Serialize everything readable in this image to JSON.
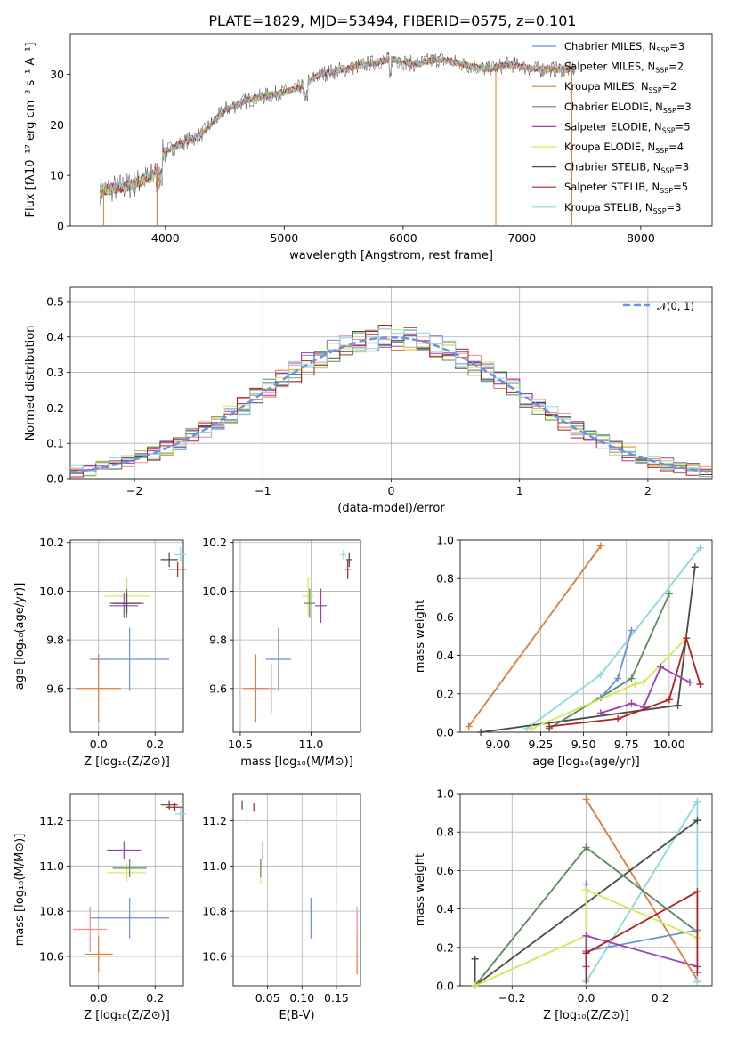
{
  "page": {
    "title": "PLATE=1829, MJD=53494, FIBERID=0575, z=0.101"
  },
  "colors": {
    "chabrier_miles": "#6a8fd8",
    "salpeter_miles": "#f28e8e",
    "kroupa_miles": "#e07b39",
    "chabrier_elodie": "#5a8a5e",
    "salpeter_elodie": "#9a3fb3",
    "kroupa_elodie": "#d4e857",
    "chabrier_stelib": "#4a4a4a",
    "salpeter_stelib": "#b22222",
    "kroupa_stelib": "#8ad8e0",
    "normal_curve": "#6495ed",
    "grid": "#b0b0b0"
  },
  "chart_data": [
    {
      "id": "spectrum",
      "type": "line",
      "title": "PLATE=1829, MJD=53494, FIBERID=0575, z=0.101",
      "xlabel": "wavelength [Angstrom, rest frame]",
      "ylabel": "Flux [fλ10⁻¹⁷ erg cm⁻² s⁻¹ A⁻¹]",
      "xlim": [
        3200,
        8600
      ],
      "ylim": [
        0,
        38
      ],
      "xticks": [
        "4000",
        "5000",
        "6000",
        "7000",
        "8000"
      ],
      "yticks": [
        "0",
        "10",
        "20",
        "30"
      ],
      "grid": false,
      "legend_position": "top-right",
      "legend": [
        {
          "label": "Chabrier MILES, N",
          "sub": "SSP",
          "tail": "=3",
          "color_key": "chabrier_miles"
        },
        {
          "label": "Salpeter MILES, N",
          "sub": "SSP",
          "tail": "=2",
          "color_key": "salpeter_miles"
        },
        {
          "label": "Kroupa MILES, N",
          "sub": "SSP",
          "tail": "=2",
          "color_key": "kroupa_miles"
        },
        {
          "label": "Chabrier ELODIE, N",
          "sub": "SSP",
          "tail": "=3",
          "color_key": "chabrier_elodie"
        },
        {
          "label": "Salpeter ELODIE, N",
          "sub": "SSP",
          "tail": "=5",
          "color_key": "salpeter_elodie"
        },
        {
          "label": "Kroupa ELODIE, N",
          "sub": "SSP",
          "tail": "=4",
          "color_key": "kroupa_elodie"
        },
        {
          "label": "Chabrier STELIB, N",
          "sub": "SSP",
          "tail": "=3",
          "color_key": "chabrier_stelib"
        },
        {
          "label": "Salpeter STELIB, N",
          "sub": "SSP",
          "tail": "=5",
          "color_key": "salpeter_stelib"
        },
        {
          "label": "Kroupa STELIB, N",
          "sub": "SSP",
          "tail": "=3",
          "color_key": "kroupa_stelib"
        }
      ],
      "continuum": [
        [
          3450,
          7
        ],
        [
          3700,
          8
        ],
        [
          3800,
          9
        ],
        [
          3900,
          10
        ],
        [
          3950,
          14
        ],
        [
          4100,
          16
        ],
        [
          4300,
          18
        ],
        [
          4500,
          23
        ],
        [
          4700,
          25
        ],
        [
          4900,
          26
        ],
        [
          5100,
          27
        ],
        [
          5300,
          30
        ],
        [
          5500,
          31
        ],
        [
          5700,
          32
        ],
        [
          5900,
          33
        ],
        [
          6100,
          32
        ],
        [
          6300,
          33
        ],
        [
          6500,
          32
        ],
        [
          6700,
          31
        ],
        [
          6900,
          32
        ],
        [
          7100,
          31
        ],
        [
          7300,
          31
        ],
        [
          7450,
          31
        ]
      ],
      "drops": [
        {
          "x": 3480,
          "y": 0,
          "color_key": "kroupa_miles"
        },
        {
          "x": 3930,
          "y": 0,
          "color_key": "kroupa_miles"
        },
        {
          "x": 6780,
          "y": 0,
          "color_key": "kroupa_miles"
        },
        {
          "x": 7420,
          "y": 0,
          "color_key": "kroupa_miles"
        }
      ]
    },
    {
      "id": "residuals",
      "type": "step",
      "xlabel": "(data-model)/error",
      "ylabel": "Normed distribution",
      "xlim": [
        -2.5,
        2.5
      ],
      "ylim": [
        0,
        0.54
      ],
      "xticks": [
        "−2",
        "−1",
        "0",
        "1",
        "2"
      ],
      "yticks": [
        "0.0",
        "0.1",
        "0.2",
        "0.3",
        "0.4",
        "0.5"
      ],
      "grid": true,
      "legend": [
        {
          "label": "𝒩(0, 1)",
          "color_key": "normal_curve",
          "style": "dashed"
        }
      ],
      "legend_position": "top-right",
      "bin_width": 0.1
    },
    {
      "id": "age_vs_Z",
      "type": "scatter",
      "xlabel": "Z [log₁₀(Z/Z⊙)]",
      "ylabel": "age  [log₁₀(age/yr)]",
      "xlim": [
        -0.1,
        0.3
      ],
      "ylim": [
        9.42,
        10.21
      ],
      "xticks": [
        "0.0",
        "0.2"
      ],
      "yticks": [
        "9.6",
        "9.8",
        "10.0",
        "10.2"
      ],
      "grid": true,
      "points": [
        {
          "color_key": "chabrier_miles",
          "x": 0.11,
          "y": 9.72,
          "xerr": 0.14,
          "yerr": 0.13
        },
        {
          "color_key": "kroupa_miles",
          "x": 0.0,
          "y": 9.6,
          "xerr": 0.08,
          "yerr": 0.14
        },
        {
          "color_key": "kroupa_elodie",
          "x": 0.1,
          "y": 9.98,
          "xerr": 0.08,
          "yerr": 0.08
        },
        {
          "color_key": "chabrier_elodie",
          "x": 0.1,
          "y": 9.95,
          "xerr": 0.06,
          "yerr": 0.06
        },
        {
          "color_key": "salpeter_elodie",
          "x": 0.09,
          "y": 9.94,
          "xerr": 0.05,
          "yerr": 0.05
        },
        {
          "color_key": "chabrier_stelib",
          "x": 0.1,
          "y": 9.95,
          "xerr": 0.05,
          "yerr": 0.04
        },
        {
          "color_key": "chabrier_stelib",
          "x": 0.25,
          "y": 10.13,
          "xerr": 0.03,
          "yerr": 0.03
        },
        {
          "color_key": "salpeter_stelib",
          "x": 0.28,
          "y": 10.09,
          "xerr": 0.03,
          "yerr": 0.03
        },
        {
          "color_key": "kroupa_stelib",
          "x": 0.29,
          "y": 10.15,
          "xerr": 0.02,
          "yerr": 0.03
        }
      ]
    },
    {
      "id": "age_vs_mass",
      "type": "scatter",
      "xlabel": "mass [log₁₀(M/M⊙)]",
      "xlim": [
        10.45,
        11.35
      ],
      "ylim": [
        9.42,
        10.21
      ],
      "xticks": [
        "10.5",
        "11.0"
      ],
      "yticks": [
        "9.6",
        "9.8",
        "10.0",
        "10.2"
      ],
      "grid": true,
      "points": [
        {
          "color_key": "chabrier_miles",
          "x": 10.77,
          "y": 9.72,
          "xerr": 0.09,
          "yerr": 0.13
        },
        {
          "color_key": "kroupa_miles",
          "x": 10.61,
          "y": 9.6,
          "xerr": 0.09,
          "yerr": 0.14
        },
        {
          "color_key": "salpeter_miles",
          "x": 10.72,
          "y": 9.6,
          "xerr": 0.03,
          "yerr": 0.1
        },
        {
          "color_key": "kroupa_elodie",
          "x": 10.98,
          "y": 9.98,
          "xerr": 0.04,
          "yerr": 0.08
        },
        {
          "color_key": "chabrier_elodie",
          "x": 10.99,
          "y": 9.95,
          "xerr": 0.04,
          "yerr": 0.06
        },
        {
          "color_key": "salpeter_elodie",
          "x": 11.07,
          "y": 9.94,
          "xerr": 0.04,
          "yerr": 0.07
        },
        {
          "color_key": "chabrier_stelib",
          "x": 11.27,
          "y": 10.13,
          "xerr": 0.02,
          "yerr": 0.03
        },
        {
          "color_key": "salpeter_stelib",
          "x": 11.26,
          "y": 10.09,
          "xerr": 0.02,
          "yerr": 0.04
        },
        {
          "color_key": "kroupa_stelib",
          "x": 11.23,
          "y": 10.15,
          "xerr": 0.02,
          "yerr": 0.02
        }
      ]
    },
    {
      "id": "weight_vs_age",
      "type": "line",
      "xlabel": "age  [log₁₀(age/yr)]",
      "ylabel": "mass weight",
      "xlim": [
        8.78,
        10.25
      ],
      "ylim": [
        0,
        1.0
      ],
      "xticks": [
        "9.00",
        "9.25",
        "9.50",
        "9.75",
        "10.00"
      ],
      "yticks": [
        "0.0",
        "0.2",
        "0.4",
        "0.6",
        "0.8",
        "1.0"
      ],
      "grid": true,
      "series": [
        {
          "color_key": "kroupa_miles",
          "x": [
            8.83,
            9.6
          ],
          "y": [
            0.03,
            0.97
          ]
        },
        {
          "color_key": "kroupa_stelib",
          "x": [
            9.17,
            9.6,
            10.18
          ],
          "y": [
            0.02,
            0.3,
            0.96
          ]
        },
        {
          "color_key": "chabrier_stelib",
          "x": [
            8.9,
            10.05,
            10.15
          ],
          "y": [
            0.0,
            0.14,
            0.86
          ]
        },
        {
          "color_key": "chabrier_elodie",
          "x": [
            9.3,
            9.78,
            10.0
          ],
          "y": [
            0.02,
            0.28,
            0.72
          ]
        },
        {
          "color_key": "chabrier_miles",
          "x": [
            9.6,
            9.7,
            9.78
          ],
          "y": [
            0.18,
            0.28,
            0.53
          ]
        },
        {
          "color_key": "kroupa_elodie",
          "x": [
            9.2,
            9.8,
            9.85,
            10.1
          ],
          "y": [
            0.02,
            0.25,
            0.26,
            0.49
          ]
        },
        {
          "color_key": "salpeter_elodie",
          "x": [
            9.6,
            9.78,
            9.85,
            9.95,
            10.12
          ],
          "y": [
            0.1,
            0.15,
            0.13,
            0.34,
            0.26
          ]
        },
        {
          "color_key": "salpeter_stelib",
          "x": [
            9.3,
            9.7,
            10.0,
            10.1,
            10.18
          ],
          "y": [
            0.03,
            0.07,
            0.17,
            0.49,
            0.25
          ]
        }
      ]
    },
    {
      "id": "mass_vs_Z",
      "type": "scatter",
      "xlabel": "Z [log₁₀(Z/Z⊙)]",
      "ylabel": "mass [log₁₀(M/M⊙)]",
      "xlim": [
        -0.1,
        0.3
      ],
      "ylim": [
        10.47,
        11.32
      ],
      "xticks": [
        "0.0",
        "0.2"
      ],
      "yticks": [
        "10.6",
        "10.8",
        "11.0",
        "11.2"
      ],
      "grid": true,
      "points": [
        {
          "color_key": "chabrier_miles",
          "x": 0.11,
          "y": 10.77,
          "xerr": 0.14,
          "yerr": 0.09
        },
        {
          "color_key": "kroupa_miles",
          "x": 0.0,
          "y": 10.61,
          "xerr": 0.05,
          "yerr": 0.08
        },
        {
          "color_key": "salpeter_miles",
          "x": -0.03,
          "y": 10.72,
          "xerr": 0.06,
          "yerr": 0.1
        },
        {
          "color_key": "kroupa_elodie",
          "x": 0.1,
          "y": 10.97,
          "xerr": 0.07,
          "yerr": 0.04
        },
        {
          "color_key": "chabrier_elodie",
          "x": 0.11,
          "y": 10.99,
          "xerr": 0.06,
          "yerr": 0.04
        },
        {
          "color_key": "salpeter_elodie",
          "x": 0.09,
          "y": 11.07,
          "xerr": 0.06,
          "yerr": 0.04
        },
        {
          "color_key": "chabrier_stelib",
          "x": 0.25,
          "y": 11.27,
          "xerr": 0.03,
          "yerr": 0.02
        },
        {
          "color_key": "salpeter_stelib",
          "x": 0.27,
          "y": 11.26,
          "xerr": 0.03,
          "yerr": 0.02
        },
        {
          "color_key": "kroupa_stelib",
          "x": 0.29,
          "y": 11.23,
          "xerr": 0.02,
          "yerr": 0.03
        }
      ]
    },
    {
      "id": "mass_vs_ebv",
      "type": "scatter",
      "xlabel": "E(B-V)",
      "xlim": [
        0.0,
        0.185
      ],
      "ylim": [
        10.47,
        11.32
      ],
      "xticks": [
        "0.05",
        "0.10",
        "0.15"
      ],
      "yticks": [
        "10.6",
        "10.8",
        "11.0",
        "11.2"
      ],
      "grid": true,
      "points": [
        {
          "color_key": "chabrier_miles",
          "x": 0.113,
          "y": 10.77,
          "xerr": 0.0,
          "yerr": 0.09
        },
        {
          "color_key": "kroupa_miles",
          "x": 0.18,
          "y": 10.61,
          "xerr": 0.0,
          "yerr": 0.09
        },
        {
          "color_key": "salpeter_miles",
          "x": 0.18,
          "y": 10.72,
          "xerr": 0.0,
          "yerr": 0.1
        },
        {
          "color_key": "kroupa_elodie",
          "x": 0.04,
          "y": 10.97,
          "xerr": 0.0,
          "yerr": 0.05
        },
        {
          "color_key": "chabrier_elodie",
          "x": 0.04,
          "y": 10.99,
          "xerr": 0.0,
          "yerr": 0.04
        },
        {
          "color_key": "salpeter_elodie",
          "x": 0.043,
          "y": 11.07,
          "xerr": 0.0,
          "yerr": 0.04
        },
        {
          "color_key": "chabrier_stelib",
          "x": 0.013,
          "y": 11.27,
          "xerr": 0.0,
          "yerr": 0.02
        },
        {
          "color_key": "salpeter_stelib",
          "x": 0.03,
          "y": 11.26,
          "xerr": 0.0,
          "yerr": 0.02
        },
        {
          "color_key": "kroupa_stelib",
          "x": 0.02,
          "y": 11.21,
          "xerr": 0.0,
          "yerr": 0.03
        }
      ]
    },
    {
      "id": "weight_vs_Z",
      "type": "line",
      "xlabel": "Z [log₁₀(Z/Z⊙)]",
      "ylabel": "mass weight",
      "xlim": [
        -0.34,
        0.34
      ],
      "ylim": [
        0,
        1.0
      ],
      "xticks": [
        "−0.2",
        "0.0",
        "0.2"
      ],
      "yticks": [
        "0.0",
        "0.2",
        "0.4",
        "0.6",
        "0.8",
        "1.0"
      ],
      "grid": true,
      "series": [
        {
          "color_key": "kroupa_miles",
          "x": [
            0.0,
            0.3
          ],
          "y": [
            0.97,
            0.03
          ]
        },
        {
          "color_key": "kroupa_stelib",
          "x": [
            0.0,
            0.3,
            0.3
          ],
          "y": [
            0.02,
            0.96,
            0.02
          ]
        },
        {
          "color_key": "chabrier_stelib",
          "x": [
            -0.3,
            -0.3,
            0.3
          ],
          "y": [
            0.14,
            0.0,
            0.86
          ]
        },
        {
          "color_key": "chabrier_elodie",
          "x": [
            -0.3,
            0.0,
            0.3
          ],
          "y": [
            0.0,
            0.72,
            0.28
          ]
        },
        {
          "color_key": "chabrier_miles",
          "x": [
            0.0,
            0.0,
            0.3
          ],
          "y": [
            0.53,
            0.18,
            0.29
          ]
        },
        {
          "color_key": "kroupa_elodie",
          "x": [
            -0.3,
            0.0,
            0.0,
            0.3
          ],
          "y": [
            0.0,
            0.26,
            0.5,
            0.25
          ]
        },
        {
          "color_key": "salpeter_elodie",
          "x": [
            0.0,
            0.0,
            0.3
          ],
          "y": [
            0.1,
            0.26,
            0.1
          ]
        },
        {
          "color_key": "salpeter_stelib",
          "x": [
            0.0,
            0.0,
            0.3,
            0.3
          ],
          "y": [
            0.03,
            0.17,
            0.49,
            0.07
          ]
        }
      ]
    }
  ]
}
